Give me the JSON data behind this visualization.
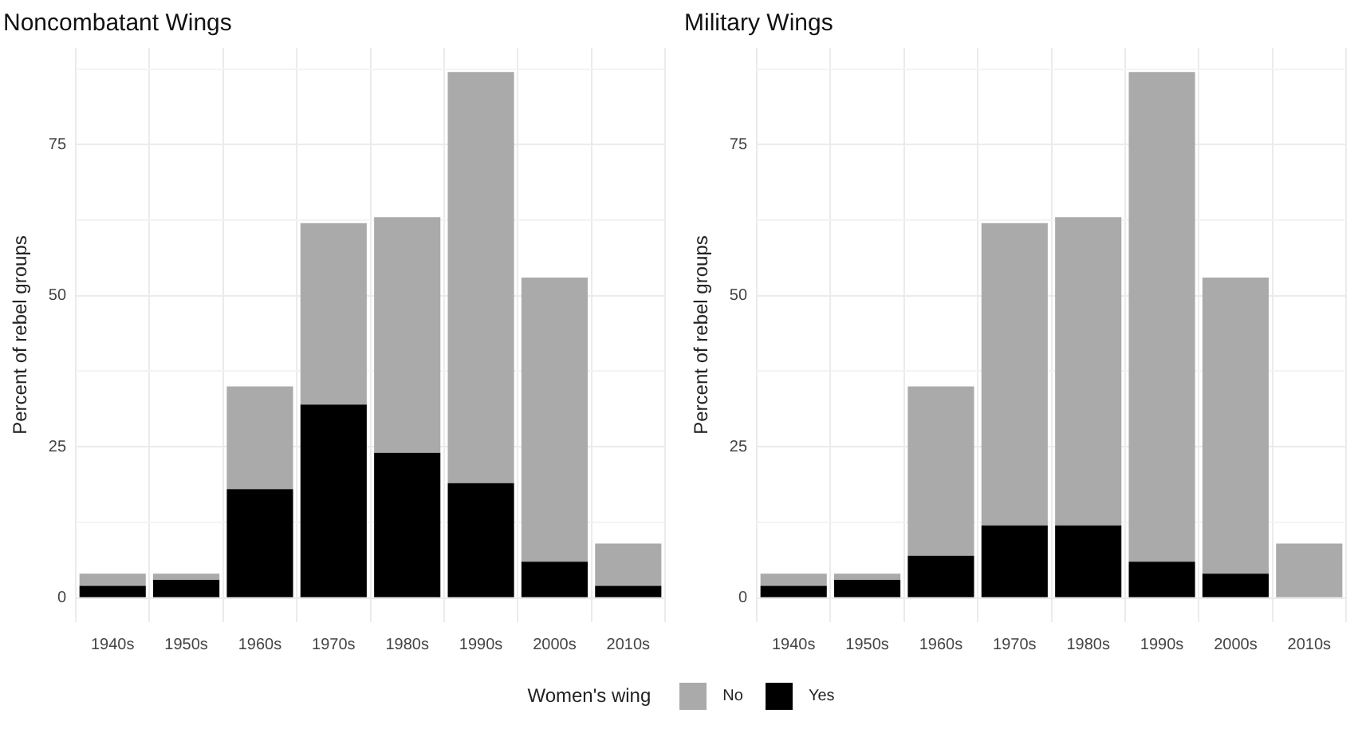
{
  "chart_data": [
    {
      "type": "bar",
      "title": "Noncombatant Wings",
      "ylabel": "Percent of rebel groups",
      "categories": [
        "1940s",
        "1950s",
        "1960s",
        "1970s",
        "1980s",
        "1990s",
        "2000s",
        "2010s"
      ],
      "stacked": true,
      "series": [
        {
          "name": "Yes",
          "color": "#000000",
          "values": [
            2,
            3,
            18,
            32,
            24,
            19,
            6,
            2
          ]
        },
        {
          "name": "No",
          "color": "#aaaaaa",
          "values": [
            2,
            1,
            17,
            30,
            39,
            68,
            47,
            7
          ]
        }
      ],
      "ylim": [
        -4,
        91
      ],
      "yticks": [
        0,
        {
          "value": 12.5,
          "label": null
        },
        25,
        {
          "value": 37.5,
          "label": null
        },
        50,
        {
          "value": 62.5,
          "label": null
        },
        75,
        {
          "value": 87.5,
          "label": null
        }
      ],
      "grid": true,
      "legend": "bottom",
      "legend_title": "Women's wing"
    },
    {
      "type": "bar",
      "title": "Military Wings",
      "ylabel": "Percent of rebel groups",
      "categories": [
        "1940s",
        "1950s",
        "1960s",
        "1970s",
        "1980s",
        "1990s",
        "2000s",
        "2010s"
      ],
      "stacked": true,
      "series": [
        {
          "name": "Yes",
          "color": "#000000",
          "values": [
            2,
            3,
            7,
            12,
            12,
            6,
            4,
            0
          ]
        },
        {
          "name": "No",
          "color": "#aaaaaa",
          "values": [
            2,
            1,
            28,
            50,
            51,
            81,
            49,
            9
          ]
        }
      ],
      "ylim": [
        -4,
        91
      ],
      "yticks": [
        0,
        {
          "value": 12.5,
          "label": null
        },
        25,
        {
          "value": 37.5,
          "label": null
        },
        50,
        {
          "value": 62.5,
          "label": null
        },
        75,
        {
          "value": 87.5,
          "label": null
        }
      ],
      "grid": true
    }
  ]
}
